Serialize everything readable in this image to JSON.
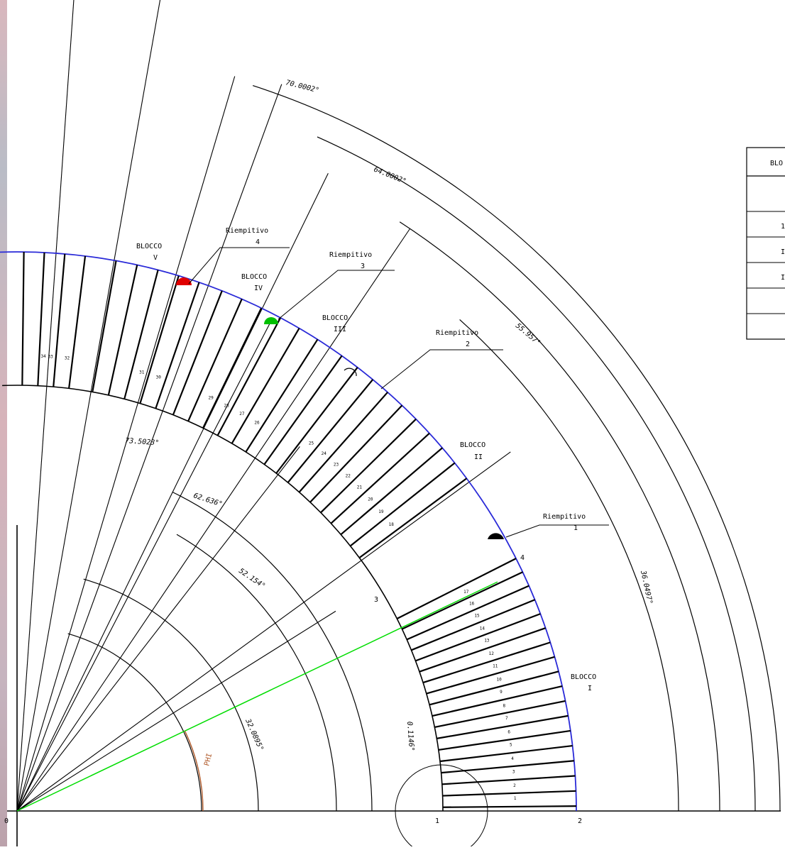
{
  "blocks": [
    {
      "title": "BLOCCO",
      "numeral": "I"
    },
    {
      "title": "BLOCCO",
      "numeral": "II"
    },
    {
      "title": "BLOCCO",
      "numeral": "III"
    },
    {
      "title": "BLOCCO",
      "numeral": "IV"
    },
    {
      "title": "BLOCCO",
      "numeral": "V"
    }
  ],
  "spacers": [
    {
      "title": "Riempitivo",
      "number": "1"
    },
    {
      "title": "Riempitivo",
      "number": "2"
    },
    {
      "title": "Riempitivo",
      "number": "3"
    },
    {
      "title": "Riempitivo",
      "number": "4"
    }
  ],
  "angles": {
    "a70": "70.0002°",
    "a64": "64.0002°",
    "a55": "55.957°",
    "a73": "73.5023°",
    "a62": "62.636°",
    "a52": "52.154°",
    "a36": "36.0497°",
    "a32": "32.0895°",
    "a0": "0.1146°"
  },
  "phi_label": "PHI",
  "points": {
    "p0": "0",
    "p1": "1",
    "p2": "2",
    "p3": "3",
    "p4": "4"
  },
  "conductor_numbers": [
    "1",
    "2",
    "3",
    "4",
    "5",
    "6",
    "7",
    "8",
    "9",
    "10",
    "11",
    "12",
    "13",
    "14",
    "15",
    "16",
    "17",
    "18",
    "19",
    "20",
    "21",
    "22",
    "23",
    "24",
    "25",
    "26",
    "27",
    "28",
    "29",
    "30",
    "31",
    "32",
    "33",
    "34"
  ],
  "legend_header": "BLO",
  "legend_rows": [
    "",
    "1",
    "I",
    "I",
    ""
  ],
  "colors": {
    "outer_arc": "#2a2ad8",
    "phi_line": "#00dd00",
    "phi_arc": "#b05a2a",
    "spacer1": "#000000",
    "spacer2": "#000000",
    "spacer3": "#00c000",
    "spacer4": "#e00000"
  }
}
